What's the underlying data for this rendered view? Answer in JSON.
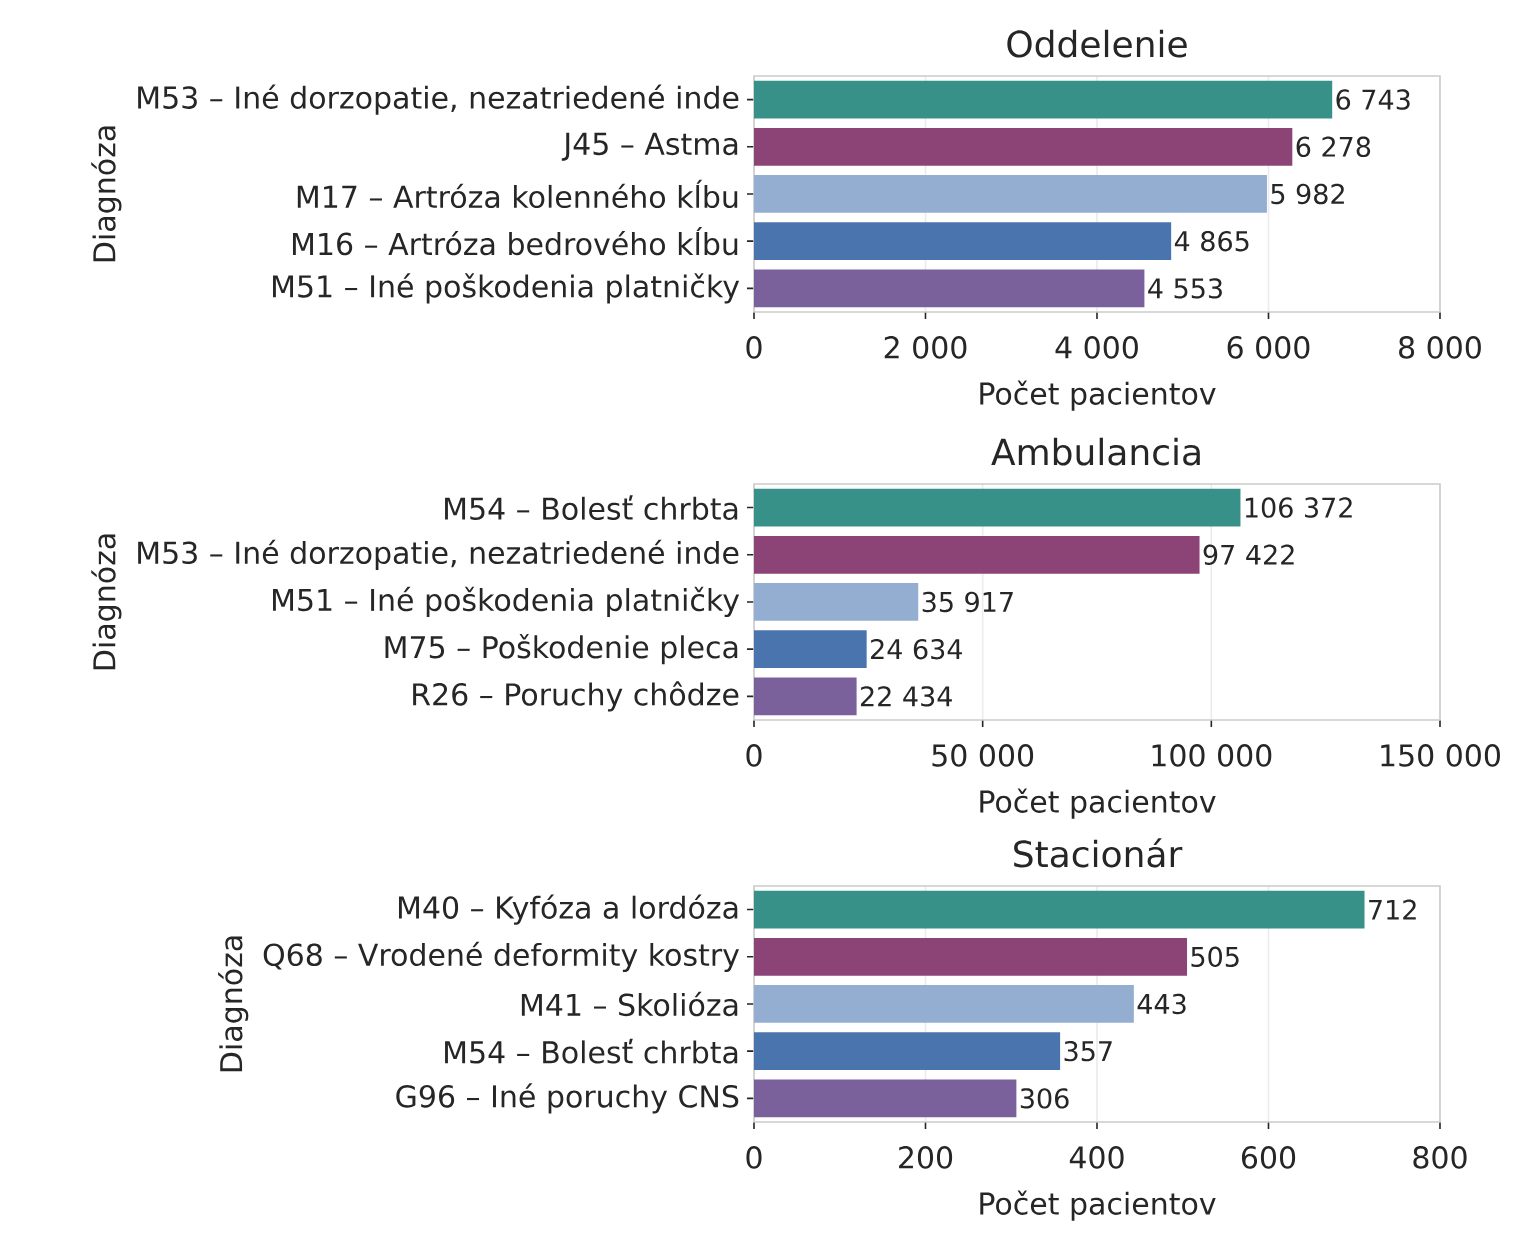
{
  "chart_data": [
    {
      "type": "bar",
      "orientation": "horizontal",
      "title": "Oddelenie",
      "xlabel": "Počet pacientov",
      "ylabel": "Diagnóza",
      "categories": [
        "M53 – Iné dorzopatie, nezatriedené inde",
        "J45 – Astma",
        "M17 – Artróza kolenného kĺbu",
        "M16 – Artróza bedrového kĺbu",
        "M51 – Iné poškodenia platničky"
      ],
      "values": [
        6743,
        6278,
        5982,
        4865,
        4553
      ],
      "value_labels": [
        "6 743",
        "6 278",
        "5 982",
        "4 865",
        "4 553"
      ],
      "colors": [
        "#389189",
        "#8c4477",
        "#94aed2",
        "#4a74ad",
        "#7a619c"
      ],
      "xlim": [
        0,
        8000
      ],
      "xticks": [
        0,
        {
          "value": 2000,
          "label": "2 000"
        },
        {
          "value": 4000,
          "label": "4 000"
        },
        {
          "value": 6000,
          "label": "6 000"
        },
        {
          "value": 8000,
          "label": "8 000"
        }
      ],
      "grid": "x"
    },
    {
      "type": "bar",
      "orientation": "horizontal",
      "title": "Ambulancia",
      "xlabel": "Počet pacientov",
      "ylabel": "Diagnóza",
      "categories": [
        "M54 – Bolesť chrbta",
        "M53 – Iné dorzopatie, nezatriedené inde",
        "M51 – Iné poškodenia platničky",
        "M75 – Poškodenie pleca",
        "R26 – Poruchy chôdze"
      ],
      "values": [
        106372,
        97422,
        35917,
        24634,
        22434
      ],
      "value_labels": [
        "106 372",
        "97 422",
        "35 917",
        "24 634",
        "22 434"
      ],
      "colors": [
        "#389189",
        "#8c4477",
        "#94aed2",
        "#4a74ad",
        "#7a619c"
      ],
      "xlim": [
        0,
        150000
      ],
      "xticks": [
        0,
        {
          "value": 50000,
          "label": "50 000"
        },
        {
          "value": 100000,
          "label": "100 000"
        },
        {
          "value": 150000,
          "label": "150 000"
        }
      ],
      "grid": "x"
    },
    {
      "type": "bar",
      "orientation": "horizontal",
      "title": "Stacionár",
      "xlabel": "Počet pacientov",
      "ylabel": "Diagnóza",
      "categories": [
        "M40 – Kyfóza a lordóza",
        "Q68 – Vrodené deformity kostry",
        "M41 – Skolióza",
        "M54 – Bolesť chrbta",
        "G96 – Iné poruchy CNS"
      ],
      "values": [
        712,
        505,
        443,
        357,
        306
      ],
      "data_labels": true,
      "colors": [
        "#389189",
        "#8c4477",
        "#94aed2",
        "#4a74ad",
        "#7a619c"
      ],
      "xlim": [
        0,
        800
      ],
      "xticks": [
        0,
        200,
        400,
        600,
        800
      ],
      "grid": "x"
    }
  ]
}
